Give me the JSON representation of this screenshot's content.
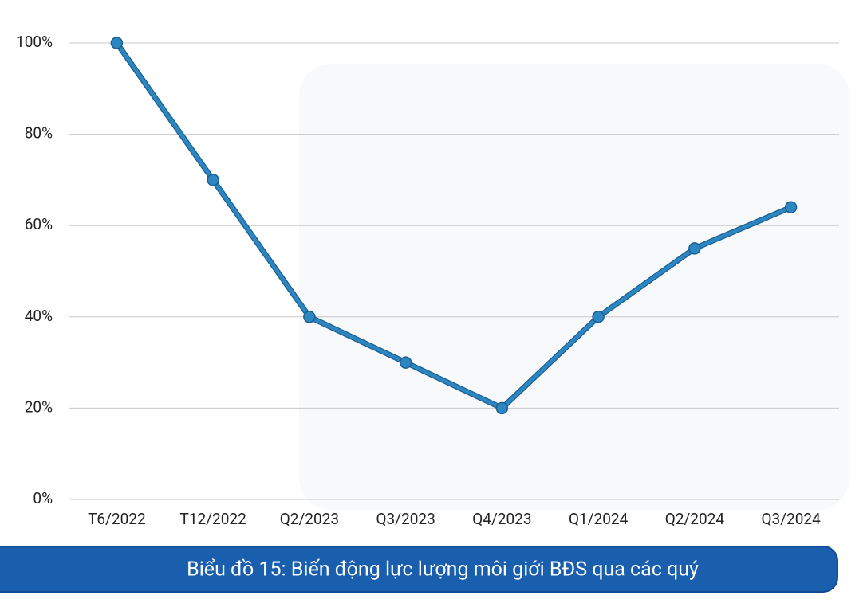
{
  "chart_data": {
    "type": "line",
    "title": "Biểu đồ 15: Biến động lực lượng môi giới BĐS qua các quý",
    "categories": [
      "T6/2022",
      "T12/2022",
      "Q2/2023",
      "Q3/2023",
      "Q4/2023",
      "Q1/2024",
      "Q2/2024",
      "Q3/2024"
    ],
    "values": [
      100,
      70,
      40,
      30,
      20,
      40,
      55,
      64
    ],
    "color": "#2b86c2",
    "ylim": [
      0,
      100
    ],
    "yticks": [
      {
        "value": 0,
        "label": "0%"
      },
      {
        "value": 20,
        "label": "20%"
      },
      {
        "value": 40,
        "label": "40%"
      },
      {
        "value": 60,
        "label": "60%"
      },
      {
        "value": 80,
        "label": "80%"
      },
      {
        "value": 100,
        "label": "100%"
      }
    ],
    "grid": true
  }
}
